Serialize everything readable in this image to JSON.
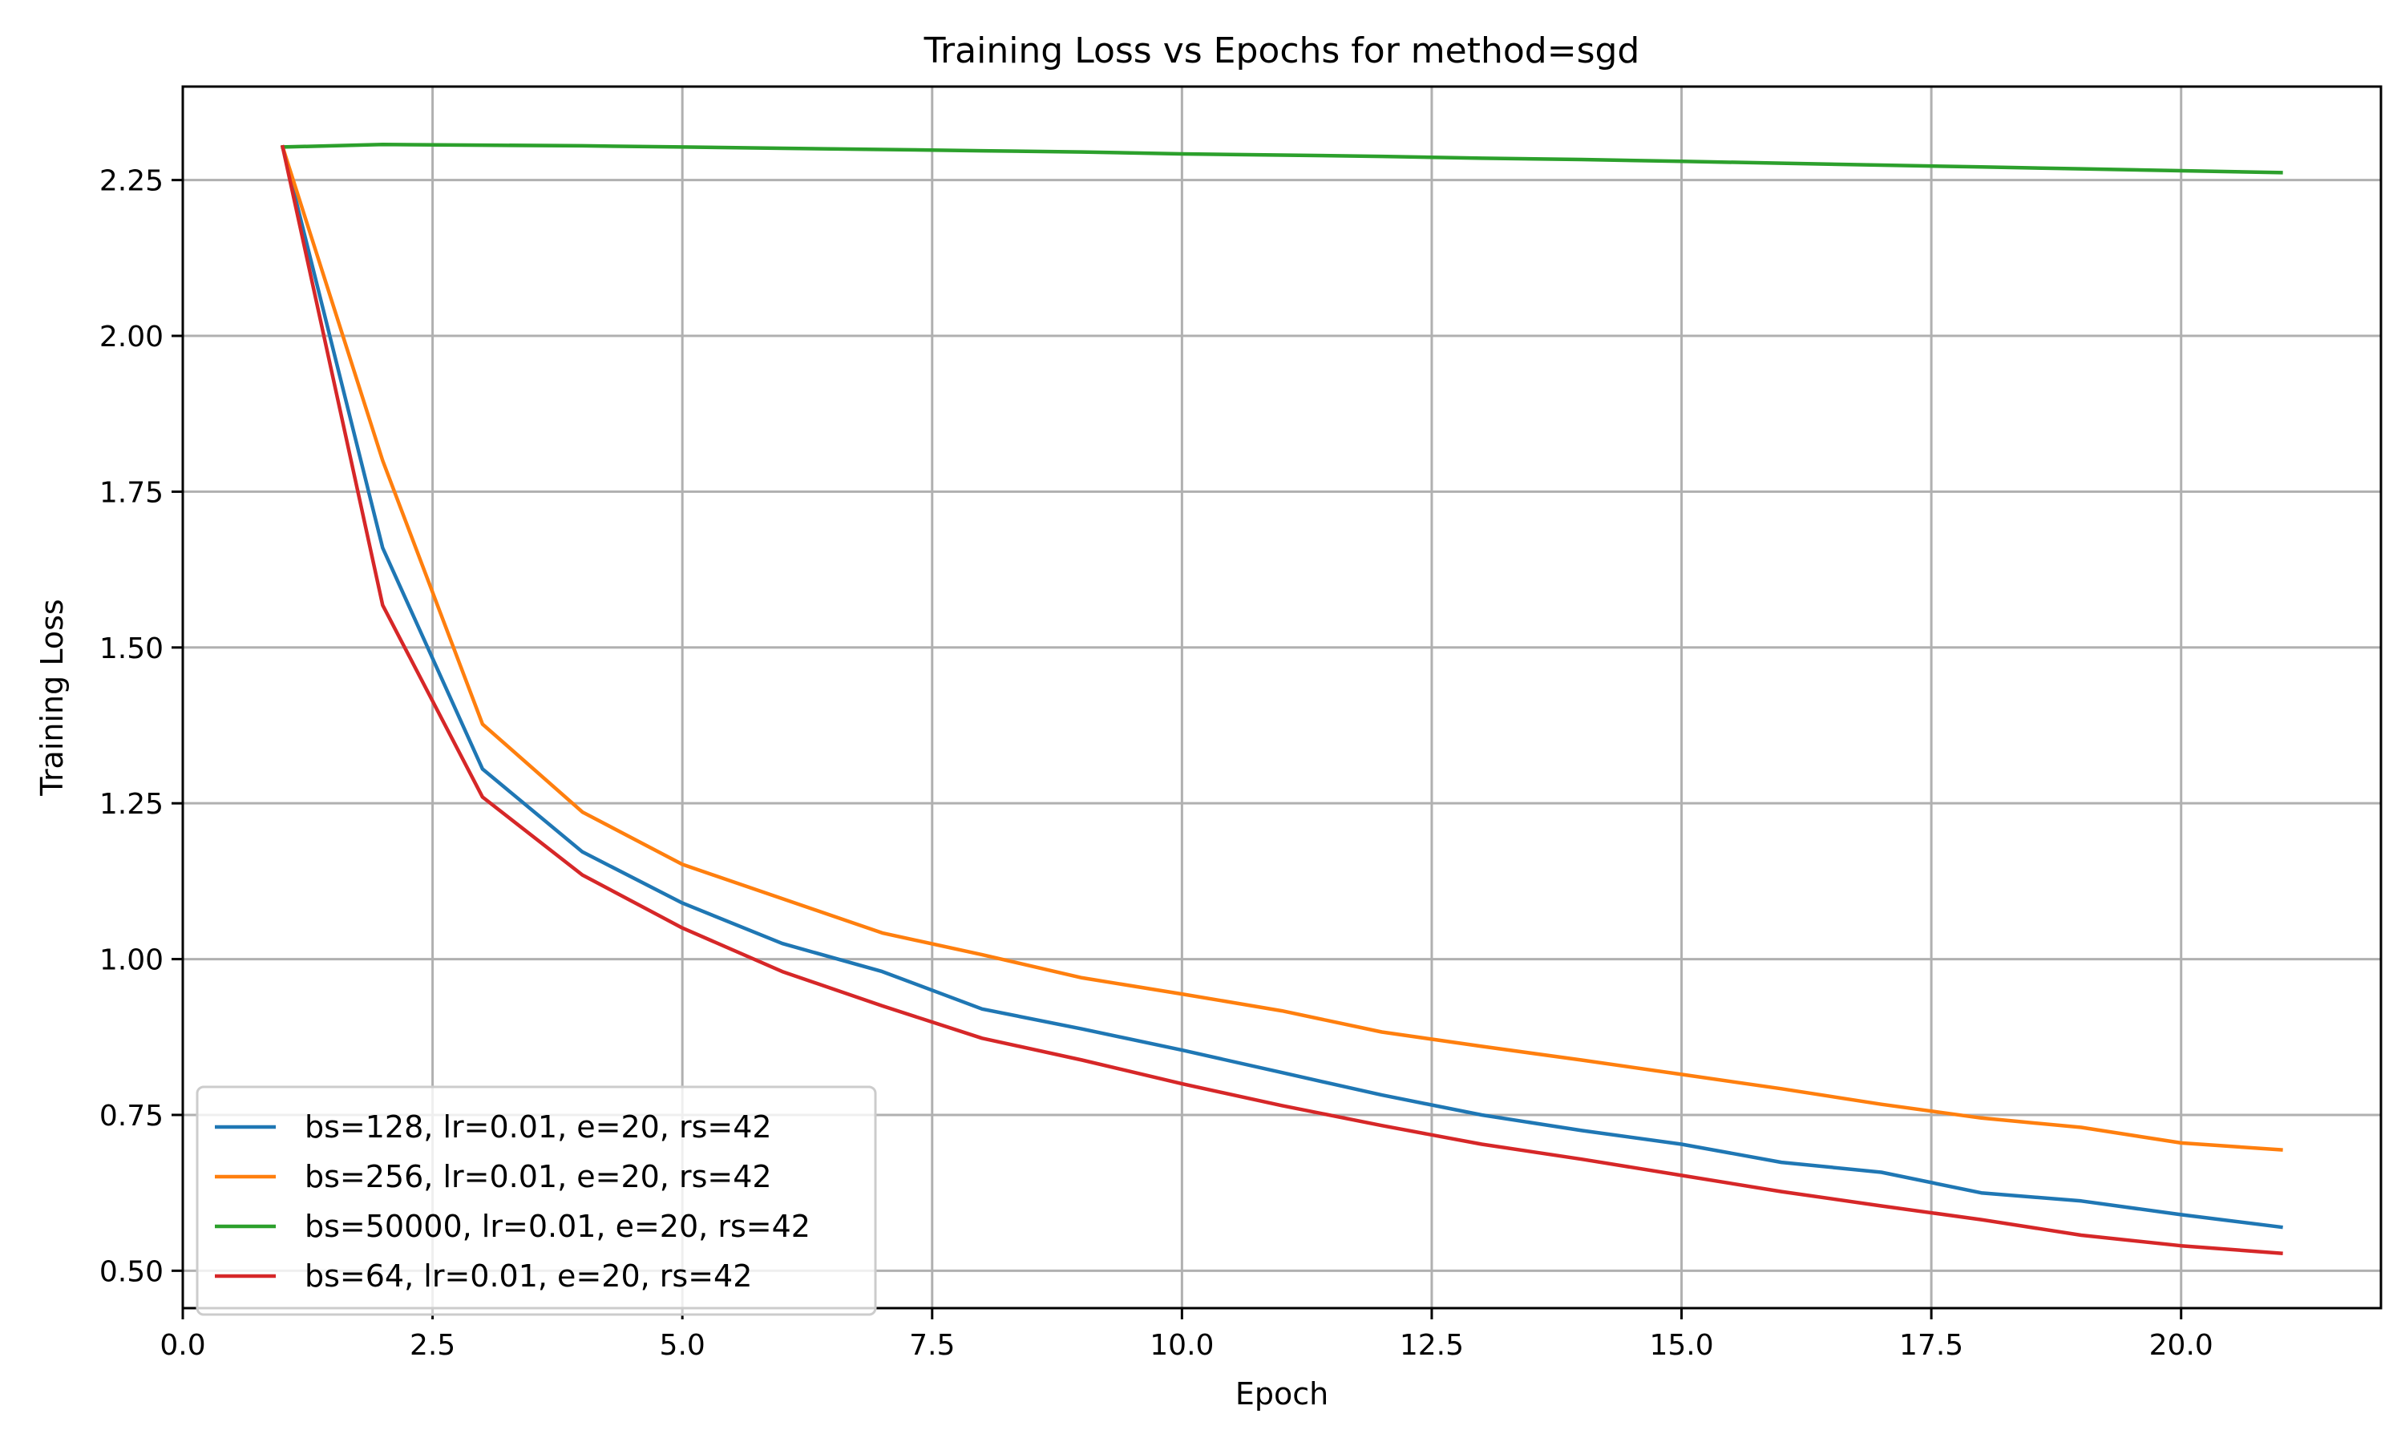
{
  "chart_data": {
    "type": "line",
    "title": "Training Loss vs Epochs for method=sgd",
    "xlabel": "Epoch",
    "ylabel": "Training Loss",
    "xlim": [
      0,
      22
    ],
    "ylim": [
      0.44,
      2.4
    ],
    "x_ticks": [
      0.0,
      2.5,
      5.0,
      7.5,
      10.0,
      12.5,
      15.0,
      17.5,
      20.0
    ],
    "x_tick_labels": [
      "0.0",
      "2.5",
      "5.0",
      "7.5",
      "10.0",
      "12.5",
      "15.0",
      "17.5",
      "20.0"
    ],
    "y_ticks": [
      0.5,
      0.75,
      1.0,
      1.25,
      1.5,
      1.75,
      2.0,
      2.25
    ],
    "y_tick_labels": [
      "0.50",
      "0.75",
      "1.00",
      "1.25",
      "1.50",
      "1.75",
      "2.00",
      "2.25"
    ],
    "grid": true,
    "legend_position": "lower-left",
    "x": [
      1,
      2,
      3,
      4,
      5,
      6,
      7,
      8,
      9,
      10,
      11,
      12,
      13,
      14,
      15,
      16,
      17,
      18,
      19,
      20,
      21
    ],
    "series": [
      {
        "name": "bs=128, lr=0.01, e=20, rs=42",
        "color": "#1f77b4",
        "values": [
          2.303,
          1.66,
          1.305,
          1.172,
          1.09,
          1.025,
          0.98,
          0.92,
          0.888,
          0.854,
          0.818,
          0.782,
          0.75,
          0.725,
          0.703,
          0.674,
          0.658,
          0.625,
          0.612,
          0.59,
          0.57
        ]
      },
      {
        "name": "bs=256, lr=0.01, e=20, rs=42",
        "color": "#ff7f0e",
        "values": [
          2.303,
          1.8,
          1.377,
          1.236,
          1.152,
          1.097,
          1.042,
          1.007,
          0.97,
          0.944,
          0.917,
          0.883,
          0.86,
          0.838,
          0.815,
          0.792,
          0.767,
          0.745,
          0.73,
          0.705,
          0.694
        ]
      },
      {
        "name": "bs=50000, lr=0.01, e=20, rs=42",
        "color": "#2ca02c",
        "values": [
          2.303,
          2.307,
          2.306,
          2.305,
          2.303,
          2.301,
          2.299,
          2.297,
          2.295,
          2.292,
          2.29,
          2.288,
          2.285,
          2.283,
          2.28,
          2.277,
          2.274,
          2.271,
          2.268,
          2.265,
          2.262
        ]
      },
      {
        "name": "bs=64, lr=0.01, e=20, rs=42",
        "color": "#d62728",
        "values": [
          2.303,
          1.568,
          1.26,
          1.135,
          1.05,
          0.98,
          0.925,
          0.873,
          0.838,
          0.8,
          0.765,
          0.733,
          0.703,
          0.679,
          0.653,
          0.627,
          0.604,
          0.582,
          0.557,
          0.54,
          0.528
        ]
      }
    ]
  }
}
